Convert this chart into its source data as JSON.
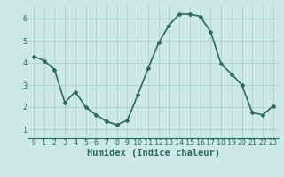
{
  "x": [
    0,
    1,
    2,
    3,
    4,
    5,
    6,
    7,
    8,
    9,
    10,
    11,
    12,
    13,
    14,
    15,
    16,
    17,
    18,
    19,
    20,
    21,
    22,
    23
  ],
  "y": [
    4.3,
    4.1,
    3.7,
    2.2,
    2.7,
    2.0,
    1.65,
    1.35,
    1.2,
    1.4,
    2.55,
    3.75,
    4.9,
    5.7,
    6.2,
    6.2,
    6.1,
    5.4,
    3.95,
    3.5,
    3.0,
    1.75,
    1.65,
    2.05
  ],
  "line_color": "#2d6b5e",
  "marker": "D",
  "marker_size": 2.0,
  "bg_color": "#cce8e8",
  "grid_color": "#aacccc",
  "xlabel": "Humidex (Indice chaleur)",
  "xlabel_fontsize": 7.5,
  "ylim": [
    0.6,
    6.6
  ],
  "xlim": [
    -0.5,
    23.5
  ],
  "yticks": [
    1,
    2,
    3,
    4,
    5,
    6
  ],
  "xtick_labels": [
    "0",
    "1",
    "2",
    "3",
    "4",
    "5",
    "6",
    "7",
    "8",
    "9",
    "10",
    "11",
    "12",
    "13",
    "14",
    "15",
    "16",
    "17",
    "18",
    "19",
    "20",
    "21",
    "22",
    "23"
  ],
  "tick_fontsize": 6.0,
  "linewidth": 1.2
}
